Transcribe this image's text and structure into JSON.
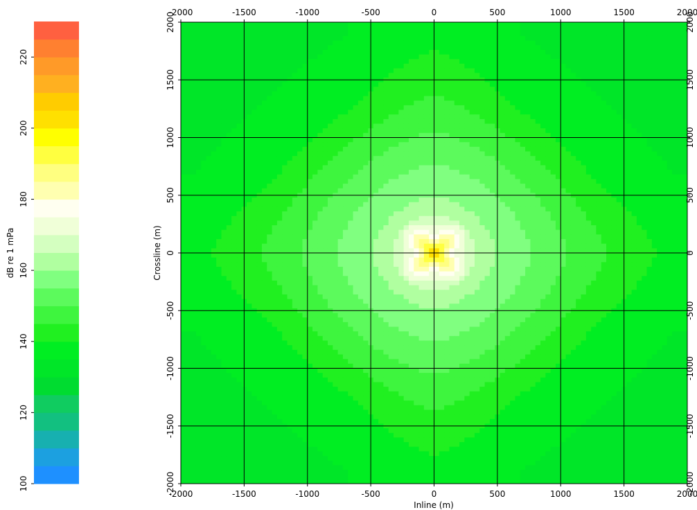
{
  "chart_data": {
    "type": "heatmap",
    "title": "",
    "xlabel": "Inline (m)",
    "ylabel": "Crossline (m)",
    "xlim": [
      -2000,
      2000
    ],
    "ylim": [
      -2000,
      2000
    ],
    "x_ticks": [
      -2000,
      -1500,
      -1000,
      -500,
      0,
      500,
      1000,
      1500,
      2000
    ],
    "y_ticks": [
      -2000,
      -1500,
      -1000,
      -500,
      0,
      500,
      1000,
      1500,
      2000
    ],
    "x_tick_labels": [
      "-2000",
      "-1500",
      "-1000",
      "-500",
      "0",
      "500",
      "1000",
      "1500",
      "2000"
    ],
    "y_tick_labels": [
      "-2000",
      "-1500",
      "-1000",
      "-500",
      "0",
      "500",
      "1000",
      "1500",
      "2000"
    ],
    "grid": true,
    "field": {
      "description_units": "dB re 1 mPa",
      "peak_location": [
        0,
        0
      ],
      "peak_value": 205,
      "values_along_axis_from_source_m": [
        [
          0,
          205
        ],
        [
          100,
          180
        ],
        [
          250,
          166
        ],
        [
          500,
          160
        ],
        [
          1000,
          151
        ],
        [
          1500,
          143
        ],
        [
          2000,
          137
        ]
      ],
      "values_along_diagonal_from_source_m": [
        [
          0,
          205
        ],
        [
          354,
          162
        ],
        [
          707,
          155
        ],
        [
          1414,
          139
        ],
        [
          2000,
          134
        ],
        [
          2828,
          131
        ]
      ]
    },
    "colorbar": {
      "label": "dB re 1 mPa",
      "min": 100,
      "max": 230,
      "ticks": [
        100,
        120,
        140,
        160,
        180,
        200,
        220
      ],
      "tick_labels": [
        "100",
        "120",
        "140",
        "160",
        "180",
        "200",
        "220"
      ],
      "levels": [
        100,
        105,
        110,
        115,
        120,
        125,
        130,
        135,
        140,
        145,
        150,
        155,
        160,
        165,
        170,
        175,
        180,
        185,
        190,
        195,
        200,
        205,
        210,
        215,
        220,
        225,
        230
      ],
      "colors": [
        "#1e90ff",
        "#1ca0e0",
        "#17b0b0",
        "#12c080",
        "#10cc60",
        "#00dc30",
        "#00e628",
        "#00ee22",
        "#20f020",
        "#3ef53e",
        "#5cfa5c",
        "#80ff80",
        "#b0ffa0",
        "#d4ffc0",
        "#f0ffd8",
        "#fffff0",
        "#ffffb0",
        "#ffff80",
        "#ffff40",
        "#ffff00",
        "#ffe000",
        "#ffcc00",
        "#ffb020",
        "#ff9a28",
        "#ff8030",
        "#ff6040"
      ]
    }
  }
}
